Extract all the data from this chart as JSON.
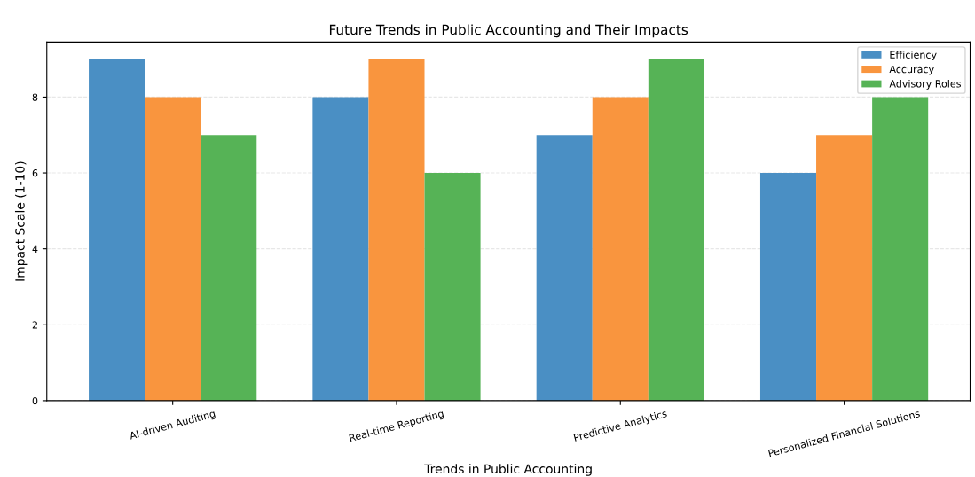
{
  "chart_data": {
    "type": "bar",
    "title": "Future Trends in Public Accounting and Their Impacts",
    "xlabel": "Trends in Public Accounting",
    "ylabel": "Impact Scale (1-10)",
    "categories": [
      "AI-driven Auditing",
      "Real-time Reporting",
      "Predictive Analytics",
      "Personalized Financial Solutions"
    ],
    "series": [
      {
        "name": "Efficiency",
        "color": "#4a8fc4",
        "values": [
          9,
          8,
          7,
          6
        ]
      },
      {
        "name": "Accuracy",
        "color": "#f9953e",
        "values": [
          8,
          9,
          8,
          7
        ]
      },
      {
        "name": "Advisory Roles",
        "color": "#56b356",
        "values": [
          7,
          6,
          9,
          8
        ]
      }
    ],
    "ylim": [
      0,
      9.45
    ],
    "yticks": [
      0,
      2,
      4,
      6,
      8
    ],
    "grid": "y",
    "legend": "top right"
  }
}
